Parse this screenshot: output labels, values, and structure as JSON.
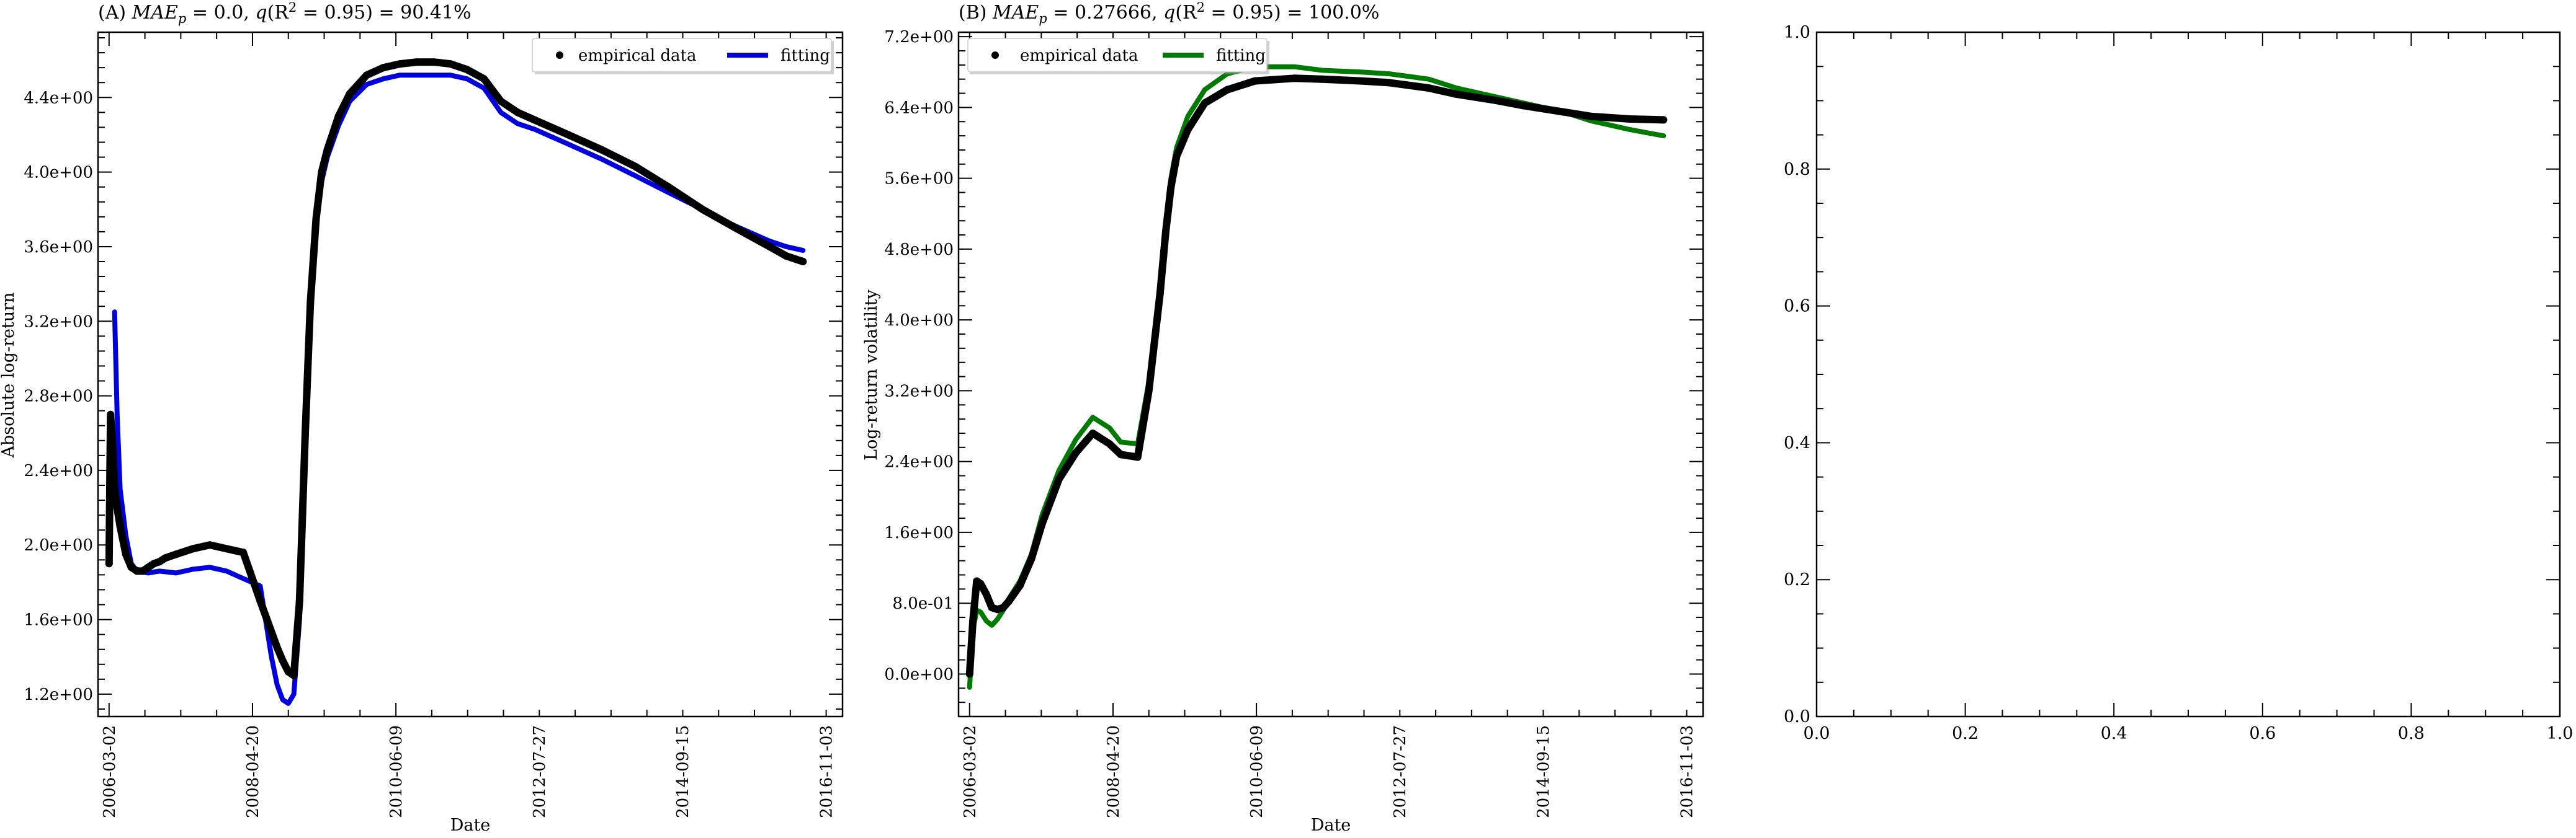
{
  "chart_data": [
    {
      "type": "line",
      "panel": "A",
      "title": "(A) MAE_p = 0.0, q(R² = 0.95) = 90.41%",
      "title_parts": {
        "prefix": "(A) ",
        "mae_label": "MAE",
        "mae_sub": "p",
        "mae_value": " = 0.0, ",
        "q_label": "q",
        "r2_open": "(R",
        "r2_sup": "2",
        "r2_rest": " = 0.95) = 90.41%"
      },
      "xlabel": "Date",
      "ylabel": "Absolute log-return",
      "x_ticks": [
        "2006-03-02",
        "2008-04-20",
        "2010-06-09",
        "2012-07-27",
        "2014-09-15",
        "2016-11-03"
      ],
      "xlim": [
        "2006-01-01",
        "2017-02-01"
      ],
      "ylim": [
        1.08,
        4.75
      ],
      "y_ticks": [
        "1.2e+00",
        "1.6e+00",
        "2.0e+00",
        "2.4e+00",
        "2.8e+00",
        "3.2e+00",
        "3.6e+00",
        "4.0e+00",
        "4.4e+00"
      ],
      "legend": {
        "placement": "top-right",
        "entries": [
          "empirical data",
          "fitting"
        ]
      },
      "colors": {
        "empirical": "#000000",
        "fitting": "#0000dd"
      },
      "series": [
        {
          "name": "empirical data",
          "style": "points",
          "x": [
            "2006-03-02",
            "2006-03-10",
            "2006-03-20",
            "2006-04-01",
            "2006-04-15",
            "2006-05-01",
            "2006-06-01",
            "2006-07-01",
            "2006-08-01",
            "2006-09-01",
            "2006-10-01",
            "2006-11-01",
            "2006-12-01",
            "2007-01-01",
            "2007-03-01",
            "2007-06-01",
            "2007-09-01",
            "2007-12-01",
            "2008-03-01",
            "2008-06-01",
            "2008-09-01",
            "2008-10-01",
            "2008-11-01",
            "2008-12-01",
            "2009-01-01",
            "2009-02-01",
            "2009-03-01",
            "2009-04-01",
            "2009-05-01",
            "2009-06-01",
            "2009-08-01",
            "2009-10-01",
            "2010-01-01",
            "2010-04-01",
            "2010-07-01",
            "2010-10-01",
            "2011-01-01",
            "2011-04-01",
            "2011-07-01",
            "2011-10-01",
            "2012-01-01",
            "2012-04-01",
            "2012-07-01",
            "2013-01-01",
            "2013-07-01",
            "2014-01-01",
            "2014-07-01",
            "2015-01-01",
            "2015-07-01",
            "2016-01-01",
            "2016-04-01",
            "2016-07-01"
          ],
          "y": [
            1.9,
            2.7,
            2.55,
            2.3,
            2.2,
            2.1,
            1.95,
            1.88,
            1.86,
            1.86,
            1.88,
            1.9,
            1.91,
            1.93,
            1.95,
            1.98,
            2.0,
            1.98,
            1.96,
            1.7,
            1.45,
            1.38,
            1.32,
            1.3,
            1.7,
            2.6,
            3.3,
            3.75,
            4.0,
            4.12,
            4.3,
            4.42,
            4.52,
            4.56,
            4.58,
            4.59,
            4.59,
            4.58,
            4.55,
            4.5,
            4.38,
            4.32,
            4.28,
            4.2,
            4.12,
            4.03,
            3.92,
            3.8,
            3.7,
            3.6,
            3.55,
            3.52
          ]
        },
        {
          "name": "fitting",
          "style": "line",
          "x": [
            "2006-04-01",
            "2006-04-15",
            "2006-05-01",
            "2006-06-01",
            "2006-07-01",
            "2006-08-01",
            "2006-10-01",
            "2006-12-01",
            "2007-03-01",
            "2007-06-01",
            "2007-09-01",
            "2007-12-01",
            "2008-03-01",
            "2008-06-01",
            "2008-08-01",
            "2008-09-01",
            "2008-10-01",
            "2008-11-01",
            "2008-12-01",
            "2009-01-01",
            "2009-02-01",
            "2009-03-01",
            "2009-04-01",
            "2009-05-01",
            "2009-06-01",
            "2009-08-01",
            "2009-10-01",
            "2010-01-01",
            "2010-04-01",
            "2010-07-01",
            "2010-10-01",
            "2011-01-01",
            "2011-04-01",
            "2011-07-01",
            "2011-10-01",
            "2012-01-01",
            "2012-04-01",
            "2012-07-01",
            "2013-01-01",
            "2013-07-01",
            "2014-01-01",
            "2014-07-01",
            "2015-01-01",
            "2015-07-01",
            "2016-01-01",
            "2016-04-01",
            "2016-07-01"
          ],
          "y": [
            3.25,
            2.7,
            2.3,
            2.05,
            1.9,
            1.86,
            1.85,
            1.86,
            1.85,
            1.87,
            1.88,
            1.86,
            1.82,
            1.78,
            1.4,
            1.25,
            1.17,
            1.15,
            1.2,
            1.6,
            2.5,
            3.25,
            3.7,
            3.95,
            4.08,
            4.25,
            4.38,
            4.47,
            4.5,
            4.52,
            4.52,
            4.52,
            4.52,
            4.5,
            4.45,
            4.32,
            4.26,
            4.23,
            4.15,
            4.07,
            3.98,
            3.89,
            3.8,
            3.71,
            3.63,
            3.6,
            3.58
          ]
        }
      ]
    },
    {
      "type": "line",
      "panel": "B",
      "title": "(B) MAE_p = 0.27666, q(R² = 0.95) = 100.0%",
      "title_parts": {
        "prefix": "(B) ",
        "mae_label": "MAE",
        "mae_sub": "p",
        "mae_value": " = 0.27666, ",
        "q_label": "q",
        "r2_open": "(R",
        "r2_sup": "2",
        "r2_rest": " = 0.95) = 100.0%"
      },
      "xlabel": "Date",
      "ylabel": "Log-return volatility",
      "x_ticks": [
        "2006-03-02",
        "2008-04-20",
        "2010-06-09",
        "2012-07-27",
        "2014-09-15",
        "2016-11-03"
      ],
      "xlim": [
        "2006-01-01",
        "2017-02-01"
      ],
      "ylim": [
        -0.48,
        7.25
      ],
      "y_ticks": [
        "0.0e+00",
        "8.0e-01",
        "1.6e+00",
        "2.4e+00",
        "3.2e+00",
        "4.0e+00",
        "4.8e+00",
        "5.6e+00",
        "6.4e+00",
        "7.2e+00"
      ],
      "legend": {
        "placement": "top-left",
        "entries": [
          "empirical data",
          "fitting"
        ]
      },
      "colors": {
        "empirical": "#000000",
        "fitting": "#007a00"
      },
      "series": [
        {
          "name": "empirical data",
          "style": "points",
          "x": [
            "2006-03-02",
            "2006-03-20",
            "2006-04-10",
            "2006-05-01",
            "2006-06-01",
            "2006-07-01",
            "2006-08-01",
            "2006-09-01",
            "2006-10-01",
            "2006-12-01",
            "2007-02-01",
            "2007-04-01",
            "2007-07-01",
            "2007-10-01",
            "2008-01-01",
            "2008-04-01",
            "2008-06-01",
            "2008-09-01",
            "2008-11-01",
            "2009-01-01",
            "2009-02-01",
            "2009-03-01",
            "2009-04-01",
            "2009-06-01",
            "2009-09-01",
            "2010-01-01",
            "2010-06-01",
            "2011-01-01",
            "2011-06-01",
            "2012-01-01",
            "2012-06-01",
            "2013-01-01",
            "2013-06-01",
            "2014-01-01",
            "2014-06-01",
            "2015-01-01",
            "2015-06-01",
            "2016-01-01",
            "2016-07-01"
          ],
          "y": [
            0.0,
            0.6,
            1.05,
            1.02,
            0.9,
            0.75,
            0.73,
            0.75,
            0.82,
            1.0,
            1.3,
            1.7,
            2.2,
            2.5,
            2.72,
            2.6,
            2.48,
            2.45,
            3.2,
            4.3,
            5.0,
            5.5,
            5.85,
            6.15,
            6.45,
            6.6,
            6.7,
            6.73,
            6.72,
            6.7,
            6.68,
            6.62,
            6.55,
            6.48,
            6.42,
            6.35,
            6.3,
            6.27,
            6.26
          ]
        },
        {
          "name": "fitting",
          "style": "line",
          "x": [
            "2006-03-02",
            "2006-03-20",
            "2006-04-10",
            "2006-05-01",
            "2006-06-01",
            "2006-07-01",
            "2006-08-01",
            "2006-09-01",
            "2006-10-01",
            "2006-12-01",
            "2007-02-01",
            "2007-04-01",
            "2007-07-01",
            "2007-10-01",
            "2008-01-01",
            "2008-04-01",
            "2008-06-01",
            "2008-09-01",
            "2008-11-01",
            "2009-01-01",
            "2009-02-01",
            "2009-03-01",
            "2009-04-01",
            "2009-06-01",
            "2009-09-01",
            "2010-01-01",
            "2010-06-01",
            "2011-01-01",
            "2011-06-01",
            "2012-01-01",
            "2012-06-01",
            "2013-01-01",
            "2013-06-01",
            "2014-01-01",
            "2014-06-01",
            "2015-01-01",
            "2015-06-01",
            "2016-01-01",
            "2016-07-01"
          ],
          "y": [
            -0.15,
            0.5,
            0.72,
            0.7,
            0.6,
            0.55,
            0.62,
            0.72,
            0.85,
            1.05,
            1.35,
            1.8,
            2.3,
            2.65,
            2.9,
            2.78,
            2.62,
            2.6,
            3.3,
            4.4,
            5.1,
            5.6,
            5.95,
            6.3,
            6.6,
            6.78,
            6.86,
            6.86,
            6.82,
            6.8,
            6.78,
            6.72,
            6.62,
            6.52,
            6.45,
            6.35,
            6.25,
            6.15,
            6.08
          ]
        }
      ]
    },
    {
      "type": "line",
      "panel": "C",
      "title": "",
      "xlabel": "",
      "ylabel": "",
      "xlim": [
        0,
        1
      ],
      "ylim": [
        0,
        1
      ],
      "x_ticks": [
        "0.0",
        "0.2",
        "0.4",
        "0.6",
        "0.8",
        "1.0"
      ],
      "y_ticks": [
        "0.0",
        "0.2",
        "0.4",
        "0.6",
        "0.8",
        "1.0"
      ],
      "series": []
    }
  ]
}
